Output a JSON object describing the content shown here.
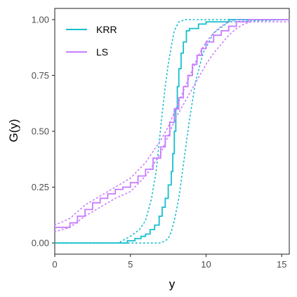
{
  "chart_data": {
    "type": "line",
    "xlabel": "y",
    "ylabel": "G(y)",
    "xlim": [
      0,
      15.5
    ],
    "ylim": [
      -0.05,
      1.05
    ],
    "grid": false,
    "x_ticks": [
      0,
      5,
      10,
      15
    ],
    "y_ticks": [
      0.0,
      0.25,
      0.5,
      0.75,
      1.0
    ],
    "x_tick_labels": [
      "0",
      "5",
      "10",
      "15"
    ],
    "y_tick_labels": [
      "0.00",
      "0.25",
      "0.50",
      "0.75",
      "1.00"
    ],
    "legend_position": "top-left",
    "series": [
      {
        "name": "KRR",
        "color": "#17becf",
        "style": "solid-step",
        "x": [
          0,
          4.8,
          5.3,
          5.7,
          6.0,
          6.3,
          6.6,
          6.9,
          7.1,
          7.3,
          7.5,
          7.7,
          7.8,
          7.9,
          8.0,
          8.1,
          8.2,
          8.35,
          8.5,
          8.7,
          8.9,
          9.2,
          9.5,
          10.0,
          10.5,
          11.5,
          15.5
        ],
        "y": [
          0.0,
          0.01,
          0.02,
          0.03,
          0.04,
          0.06,
          0.08,
          0.12,
          0.16,
          0.2,
          0.26,
          0.32,
          0.4,
          0.5,
          0.6,
          0.7,
          0.78,
          0.85,
          0.9,
          0.95,
          0.96,
          0.96,
          0.98,
          0.99,
          0.99,
          1.0,
          1.0
        ]
      },
      {
        "name": "KRR lower band",
        "color": "#17becf",
        "style": "dotted",
        "x": [
          0,
          6.5,
          7.0,
          7.3,
          7.5,
          7.7,
          7.9,
          8.2,
          8.5,
          8.9,
          9.3,
          9.8,
          10.5,
          11.5,
          15.5
        ],
        "y": [
          0.0,
          0.0,
          0.0,
          0.01,
          0.02,
          0.05,
          0.1,
          0.2,
          0.35,
          0.55,
          0.72,
          0.85,
          0.94,
          0.99,
          1.0
        ]
      },
      {
        "name": "KRR upper band",
        "color": "#17becf",
        "style": "dotted",
        "x": [
          0,
          4.2,
          5.0,
          5.6,
          6.0,
          6.4,
          6.7,
          6.9,
          7.1,
          7.3,
          7.5,
          7.7,
          7.9,
          8.2,
          8.6,
          15.5
        ],
        "y": [
          0.0,
          0.0,
          0.03,
          0.06,
          0.1,
          0.2,
          0.32,
          0.45,
          0.58,
          0.7,
          0.8,
          0.88,
          0.95,
          0.99,
          1.0,
          1.0
        ]
      },
      {
        "name": "LS",
        "color": "#c77cff",
        "style": "solid-step",
        "x": [
          0,
          1.0,
          1.5,
          2.0,
          2.5,
          3.0,
          3.5,
          4.0,
          4.5,
          5.0,
          5.5,
          6.0,
          6.5,
          7.0,
          7.3,
          7.6,
          7.9,
          8.2,
          8.5,
          8.8,
          9.1,
          9.4,
          9.7,
          10.0,
          10.5,
          11.0,
          11.5,
          12.0,
          12.8,
          15.5
        ],
        "y": [
          0.07,
          0.09,
          0.12,
          0.15,
          0.18,
          0.2,
          0.22,
          0.24,
          0.25,
          0.27,
          0.3,
          0.33,
          0.38,
          0.43,
          0.48,
          0.54,
          0.6,
          0.65,
          0.7,
          0.75,
          0.8,
          0.84,
          0.87,
          0.9,
          0.93,
          0.95,
          0.97,
          0.99,
          1.0,
          1.0
        ]
      },
      {
        "name": "LS lower band",
        "color": "#c77cff",
        "style": "dotted",
        "x": [
          0,
          1.0,
          2.0,
          3.0,
          4.0,
          5.0,
          6.0,
          7.0,
          8.0,
          8.5,
          9.0,
          9.5,
          10.0,
          10.5,
          11.0,
          11.5,
          12.0,
          12.5,
          13.0,
          15.5
        ],
        "y": [
          0.05,
          0.07,
          0.12,
          0.16,
          0.2,
          0.23,
          0.3,
          0.4,
          0.56,
          0.62,
          0.68,
          0.74,
          0.8,
          0.85,
          0.89,
          0.93,
          0.96,
          0.98,
          0.99,
          0.99
        ]
      },
      {
        "name": "LS upper band",
        "color": "#c77cff",
        "style": "dotted",
        "x": [
          0,
          1.0,
          2.0,
          3.0,
          4.0,
          5.0,
          6.0,
          7.0,
          7.5,
          8.0,
          8.5,
          9.0,
          9.5,
          10.0,
          10.5,
          11.0,
          11.5,
          12.0,
          15.5
        ],
        "y": [
          0.08,
          0.11,
          0.17,
          0.21,
          0.25,
          0.29,
          0.36,
          0.46,
          0.52,
          0.6,
          0.68,
          0.76,
          0.84,
          0.9,
          0.94,
          0.97,
          0.99,
          1.0,
          1.0
        ]
      }
    ]
  }
}
